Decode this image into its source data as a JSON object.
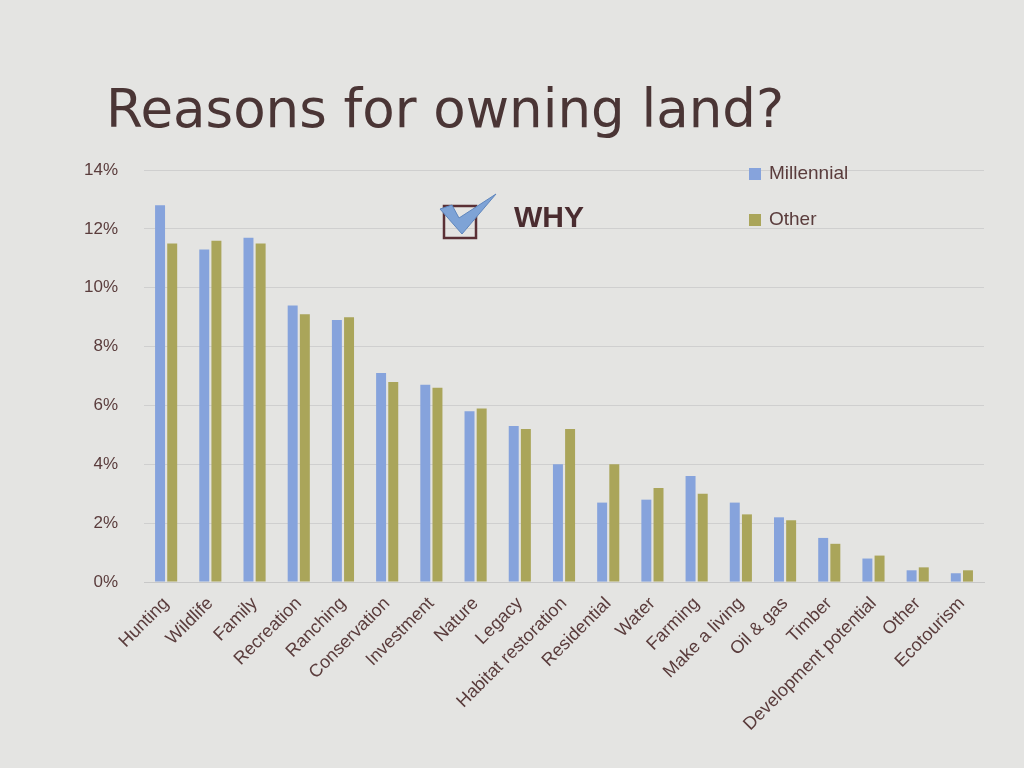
{
  "chart_data": {
    "type": "bar",
    "title": "Reasons for owning land?",
    "categories": [
      "Hunting",
      "Wildlife",
      "Family",
      "Recreation",
      "Ranching",
      "Conservation",
      "Investment",
      "Nature",
      "Legacy",
      "Habitat restoration",
      "Residential",
      "Water",
      "Farming",
      "Make a living",
      "Oil & gas",
      "Timber",
      "Development potential",
      "Other",
      "Ecotourism"
    ],
    "series": [
      {
        "name": "Millennial",
        "color": "#86a3dc",
        "values": [
          12.8,
          11.3,
          11.7,
          9.4,
          8.9,
          7.1,
          6.7,
          5.8,
          5.3,
          4.0,
          2.7,
          2.8,
          3.6,
          2.7,
          2.2,
          1.5,
          0.8,
          0.4,
          0.3
        ]
      },
      {
        "name": "Other",
        "color": "#aaa55a",
        "values": [
          11.5,
          11.6,
          11.5,
          9.1,
          9.0,
          6.8,
          6.6,
          5.9,
          5.2,
          5.2,
          4.0,
          3.2,
          3.0,
          2.3,
          2.1,
          1.3,
          0.9,
          0.5,
          0.4
        ]
      }
    ],
    "ylim": [
      0,
      14
    ],
    "yticks": [
      {
        "value": 0,
        "label": "0%"
      },
      {
        "value": 2,
        "label": "2%"
      },
      {
        "value": 4,
        "label": "4%"
      },
      {
        "value": 6,
        "label": "6%"
      },
      {
        "value": 8,
        "label": "8%"
      },
      {
        "value": 10,
        "label": "10%"
      },
      {
        "value": 12,
        "label": "12%"
      },
      {
        "value": 14,
        "label": "14%"
      }
    ],
    "grid": "y",
    "legend": "top right",
    "annotations": [
      "WHY"
    ]
  }
}
